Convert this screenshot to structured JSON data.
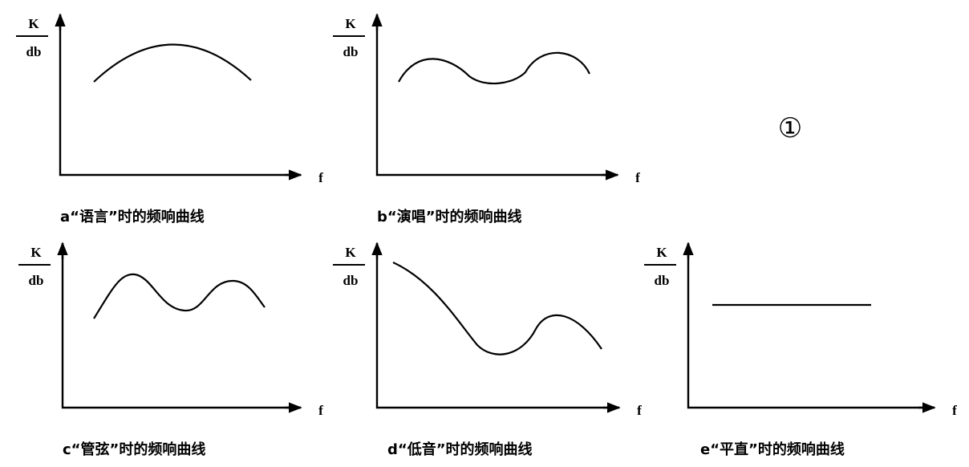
{
  "panels": [
    {
      "y_label_top": "K",
      "y_label_bottom": "db",
      "x_label": "f",
      "caption": "a“语言”时的频响曲线"
    },
    {
      "y_label_top": "K",
      "y_label_bottom": "db",
      "x_label": "f",
      "caption": "b“演唱”时的频响曲线"
    },
    {
      "y_label_top": "K",
      "y_label_bottom": "db",
      "x_label": "f",
      "caption": "c“管弦”时的频响曲线"
    },
    {
      "y_label_top": "K",
      "y_label_bottom": "db",
      "x_label": "f",
      "caption": "d“低音”时的频响曲线"
    },
    {
      "y_label_top": "K",
      "y_label_bottom": "db",
      "x_label": "f",
      "caption": "e“平直”时的频响曲线"
    }
  ],
  "marker": "①"
}
